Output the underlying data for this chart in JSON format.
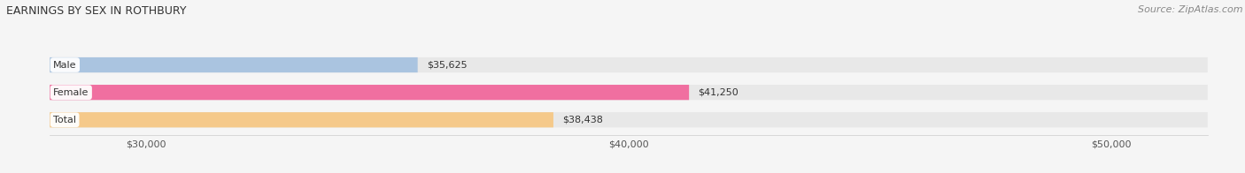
{
  "title": "EARNINGS BY SEX IN ROTHBURY",
  "source": "Source: ZipAtlas.com",
  "categories": [
    "Male",
    "Female",
    "Total"
  ],
  "values": [
    35625,
    41250,
    38438
  ],
  "bar_colors": [
    "#aac4e0",
    "#f06fa0",
    "#f5c98a"
  ],
  "bar_bg_color": "#e8e8e8",
  "value_labels": [
    "$35,625",
    "$41,250",
    "$38,438"
  ],
  "x_min": 28000,
  "x_max": 52000,
  "x_ticks": [
    30000,
    40000,
    50000
  ],
  "x_tick_labels": [
    "$30,000",
    "$40,000",
    "$50,000"
  ],
  "title_fontsize": 9,
  "source_fontsize": 8,
  "bar_label_fontsize": 8,
  "value_fontsize": 8,
  "tick_fontsize": 8,
  "figwidth": 14.06,
  "figheight": 1.96,
  "background_color": "#f5f5f5"
}
